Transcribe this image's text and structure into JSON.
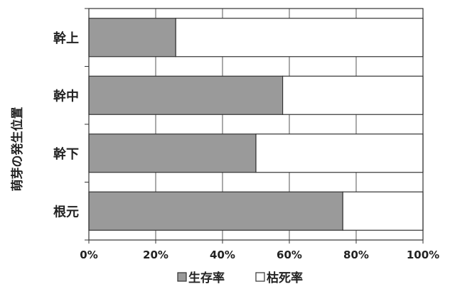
{
  "chart_data": {
    "type": "bar",
    "orientation": "horizontal",
    "stacked": true,
    "categories": [
      "幹上",
      "幹中",
      "幹下",
      "根元"
    ],
    "series": [
      {
        "name": "生存率",
        "values": [
          26,
          58,
          50,
          76
        ],
        "color": "#9a9a9a"
      },
      {
        "name": "枯死率",
        "values": [
          74,
          42,
          50,
          24
        ],
        "color": "#ffffff"
      }
    ],
    "xlim": [
      0,
      100
    ],
    "xticks": [
      "0%",
      "20%",
      "40%",
      "60%",
      "80%",
      "100%"
    ],
    "ylabel": "萌芽の発生位置",
    "grid": true,
    "legend": {
      "position": "bottom",
      "items": [
        "生存率",
        "枯死率"
      ]
    }
  }
}
